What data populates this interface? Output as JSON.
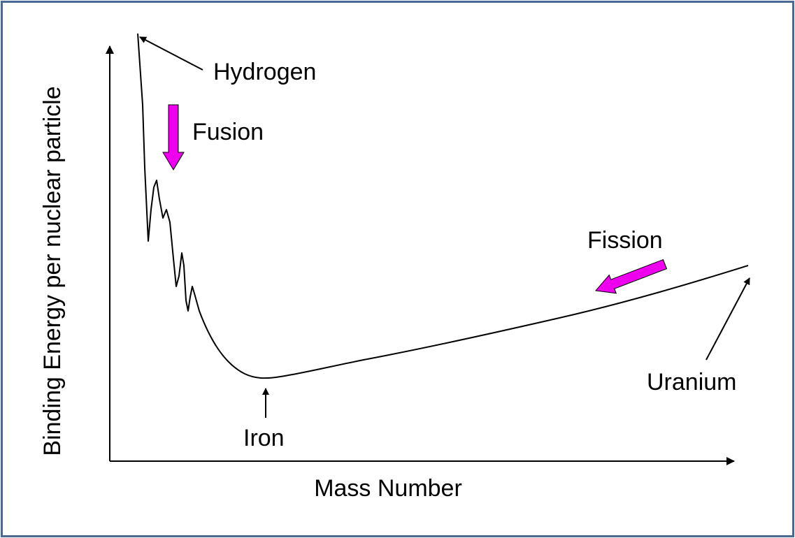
{
  "diagram": {
    "x_axis_label": "Mass Number",
    "y_axis_label": "Binding Energy per nuclear particle",
    "annotations": {
      "hydrogen": "Hydrogen",
      "fusion": "Fusion",
      "iron": "Iron",
      "fission": "Fission",
      "uranium": "Uranium"
    }
  },
  "colors": {
    "border": "#4a6a96",
    "ink": "#000000",
    "arrow_fill": "#ee00ee"
  }
}
